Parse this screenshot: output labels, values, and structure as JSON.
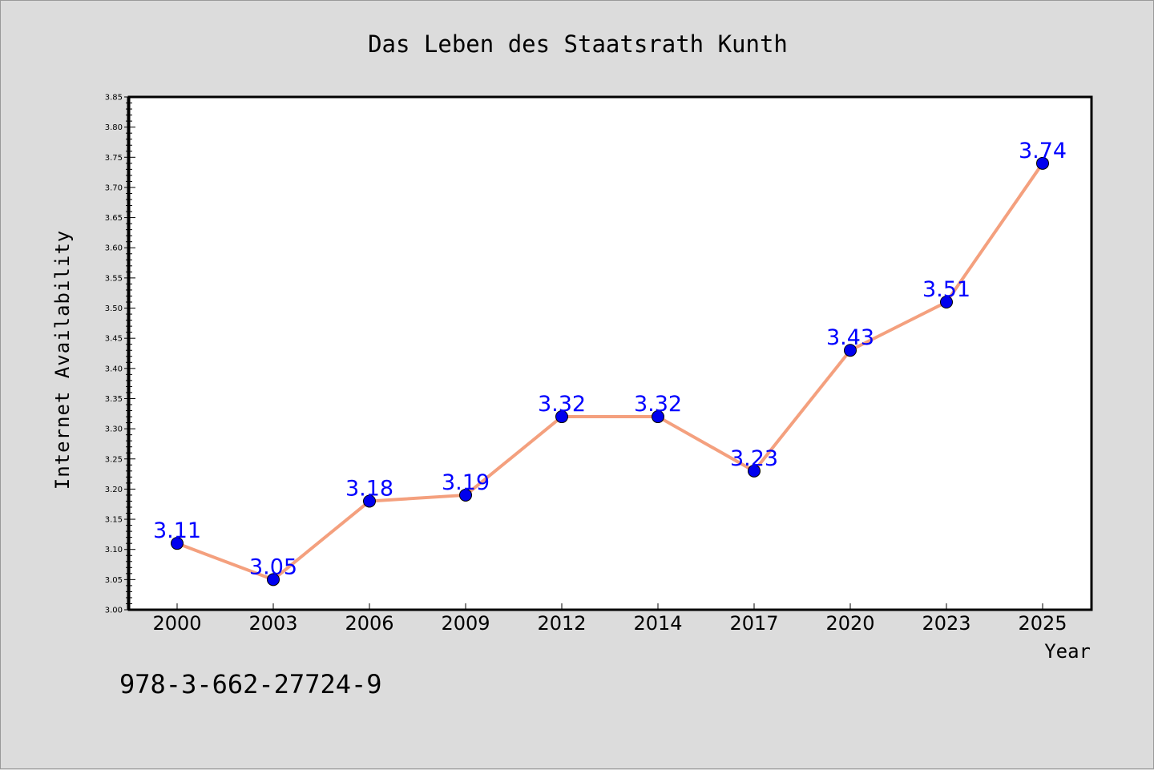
{
  "chart_data": {
    "type": "line",
    "title": "Das Leben des Staatsrath Kunth",
    "xlabel": "Year",
    "ylabel": "Internet Availability",
    "categories": [
      "2000",
      "2003",
      "2006",
      "2009",
      "2012",
      "2014",
      "2017",
      "2020",
      "2023",
      "2025"
    ],
    "series": [
      {
        "values": [
          3.11,
          3.05,
          3.18,
          3.19,
          3.32,
          3.32,
          3.23,
          3.43,
          3.51,
          3.74
        ]
      }
    ],
    "data_labels": [
      "3.11",
      "3.05",
      "3.18",
      "3.19",
      "3.32",
      "3.32",
      "3.23",
      "3.43",
      "3.51",
      "3.74"
    ],
    "ylim": [
      3.0,
      3.85
    ],
    "yticks": [
      "3.00",
      "3.05",
      "3.10",
      "3.15",
      "3.20",
      "3.25",
      "3.30",
      "3.35",
      "3.40",
      "3.45",
      "3.50",
      "3.55",
      "3.60",
      "3.65",
      "3.70",
      "3.75",
      "3.80",
      "3.85"
    ],
    "grid": false,
    "legend": "none",
    "annotation": "978-3-662-27724-9",
    "colors": {
      "line": "#f4a07e",
      "marker": "#0000ee",
      "label": "#0000ff",
      "plot_bg": "#ffffff",
      "page_bg": "#dcdcdc"
    }
  }
}
